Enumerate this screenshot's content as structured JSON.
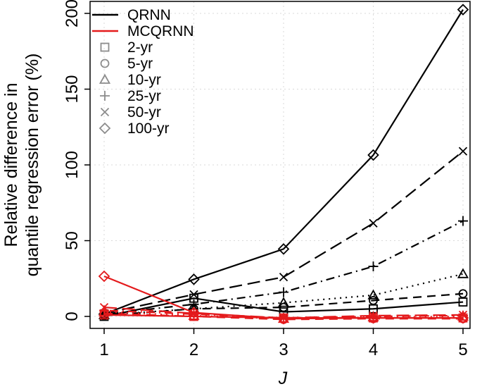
{
  "chart_data": {
    "type": "line",
    "title": "",
    "xlabel": "J",
    "ylabel_lines": [
      "Relative difference in",
      "quantile regression error (%)"
    ],
    "x": [
      1,
      2,
      3,
      4,
      5
    ],
    "xlim": [
      1,
      5
    ],
    "ylim": [
      0,
      200
    ],
    "x_ticks": [
      "1",
      "2",
      "3",
      "4",
      "5"
    ],
    "y_ticks": [
      "0",
      "50",
      "100",
      "150",
      "200"
    ],
    "grid": true,
    "legend_position": "top-left",
    "legend": {
      "models": [
        {
          "name": "QRNN",
          "color": "#000000"
        },
        {
          "name": "MCQRNN",
          "color": "#e41a1c"
        }
      ],
      "periods": [
        {
          "name": "2-yr",
          "marker": "square"
        },
        {
          "name": "5-yr",
          "marker": "circle"
        },
        {
          "name": "10-yr",
          "marker": "triangle"
        },
        {
          "name": "25-yr",
          "marker": "plus"
        },
        {
          "name": "50-yr",
          "marker": "cross"
        },
        {
          "name": "100-yr",
          "marker": "diamond"
        }
      ]
    },
    "series": [
      {
        "name": "QRNN 2-yr",
        "model": "QRNN",
        "marker": "square",
        "dash": "solid",
        "values": [
          0,
          12,
          3,
          5,
          9.5
        ]
      },
      {
        "name": "QRNN 5-yr",
        "model": "QRNN",
        "marker": "circle",
        "dash": "dash",
        "values": [
          0.5,
          5,
          6,
          10.5,
          15
        ]
      },
      {
        "name": "QRNN 10-yr",
        "model": "QRNN",
        "marker": "triangle",
        "dash": "dot",
        "values": [
          1,
          5,
          9,
          14,
          28
        ]
      },
      {
        "name": "QRNN 25-yr",
        "model": "QRNN",
        "marker": "plus",
        "dash": "dotdash",
        "values": [
          1.5,
          8,
          16,
          33,
          63
        ]
      },
      {
        "name": "QRNN 50-yr",
        "model": "QRNN",
        "marker": "cross",
        "dash": "longdash",
        "values": [
          2,
          14.5,
          26,
          61.5,
          109
        ]
      },
      {
        "name": "QRNN 100-yr",
        "model": "QRNN",
        "marker": "diamond",
        "dash": "solid",
        "values": [
          1.5,
          24.5,
          44.5,
          106.5,
          202.5
        ]
      },
      {
        "name": "MCQRNN 2-yr",
        "model": "MCQRNN",
        "marker": "square",
        "dash": "solid",
        "values": [
          1,
          0,
          -1,
          -1,
          -1
        ]
      },
      {
        "name": "MCQRNN 5-yr",
        "model": "MCQRNN",
        "marker": "circle",
        "dash": "dash",
        "values": [
          2,
          0,
          -2,
          -1.5,
          -1.5
        ]
      },
      {
        "name": "MCQRNN 10-yr",
        "model": "MCQRNN",
        "marker": "triangle",
        "dash": "dot",
        "values": [
          3,
          0.5,
          -1.5,
          -0.5,
          0
        ]
      },
      {
        "name": "MCQRNN 25-yr",
        "model": "MCQRNN",
        "marker": "plus",
        "dash": "dotdash",
        "values": [
          4,
          1.5,
          -1,
          0,
          0.5
        ]
      },
      {
        "name": "MCQRNN 50-yr",
        "model": "MCQRNN",
        "marker": "cross",
        "dash": "longdash",
        "values": [
          6,
          2,
          -1,
          0.5,
          1
        ]
      },
      {
        "name": "MCQRNN 100-yr",
        "model": "MCQRNN",
        "marker": "diamond",
        "dash": "solid",
        "values": [
          26.5,
          2.5,
          -1.5,
          -1,
          -1
        ]
      }
    ]
  }
}
